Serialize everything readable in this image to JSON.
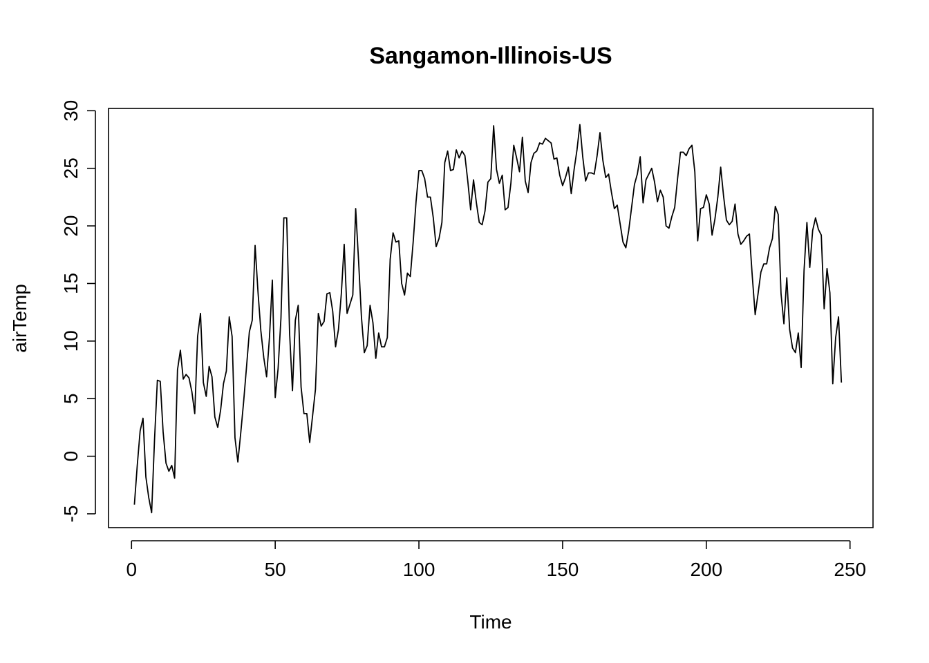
{
  "chart_data": {
    "type": "line",
    "title": "Sangamon-Illinois-US",
    "xlabel": "Time",
    "ylabel": "airTemp",
    "xlim": [
      -8,
      258
    ],
    "ylim": [
      -6.2,
      30.2
    ],
    "x_ticks": [
      0,
      50,
      100,
      150,
      200,
      250
    ],
    "y_ticks": [
      -5,
      0,
      5,
      10,
      15,
      20,
      25,
      30
    ],
    "grid": false,
    "legend": "none",
    "line_color": "#000000",
    "series": [
      {
        "x_start": 1,
        "x_step": 1,
        "values": [
          -4.2,
          -0.8,
          2.2,
          3.3,
          -1.8,
          -3.6,
          -4.9,
          1.4,
          6.6,
          6.5,
          2.1,
          -0.6,
          -1.3,
          -0.8,
          -1.9,
          7.5,
          9.2,
          6.7,
          7.1,
          6.8,
          5.6,
          3.7,
          10.4,
          12.4,
          6.4,
          5.2,
          7.8,
          6.9,
          3.4,
          2.5,
          4.0,
          6.3,
          7.4,
          12.1,
          10.4,
          1.6,
          -0.5,
          2.0,
          4.7,
          7.7,
          10.8,
          11.8,
          18.3,
          14.3,
          10.9,
          8.6,
          6.9,
          10.3,
          15.3,
          5.1,
          7.6,
          12.0,
          20.7,
          20.7,
          10.7,
          5.7,
          11.8,
          13.1,
          6.0,
          3.7,
          3.7,
          1.2,
          3.5,
          5.8,
          12.4,
          11.3,
          11.7,
          14.1,
          14.2,
          12.6,
          9.5,
          11.0,
          14.1,
          18.4,
          12.4,
          13.2,
          14.0,
          21.5,
          17.0,
          12.1,
          9.0,
          9.6,
          13.1,
          11.6,
          8.5,
          10.7,
          9.5,
          9.5,
          10.3,
          17.1,
          19.4,
          18.6,
          18.7,
          15.0,
          14.0,
          15.9,
          15.6,
          18.6,
          22.1,
          24.8,
          24.8,
          24.1,
          22.5,
          22.5,
          20.7,
          18.2,
          18.9,
          20.3,
          25.5,
          26.5,
          24.8,
          24.9,
          26.6,
          25.9,
          26.5,
          26.1,
          23.9,
          21.4,
          24.0,
          22.0,
          20.3,
          20.1,
          21.3,
          23.8,
          24.1,
          28.7,
          24.9,
          23.7,
          24.4,
          21.4,
          21.6,
          23.7,
          27.0,
          25.9,
          24.7,
          27.7,
          23.9,
          22.9,
          25.5,
          26.3,
          26.5,
          27.2,
          27.1,
          27.6,
          27.4,
          27.2,
          25.8,
          25.9,
          24.4,
          23.5,
          24.2,
          25.1,
          22.8,
          24.9,
          26.6,
          28.8,
          26.0,
          23.9,
          24.6,
          24.6,
          24.5,
          26.1,
          28.1,
          25.7,
          24.2,
          24.5,
          22.9,
          21.5,
          21.8,
          20.2,
          18.6,
          18.1,
          19.6,
          21.6,
          23.6,
          24.5,
          26.0,
          22.0,
          24.0,
          24.5,
          25.0,
          23.8,
          22.1,
          23.1,
          22.5,
          20.0,
          19.8,
          20.8,
          21.6,
          24.1,
          26.4,
          26.4,
          26.1,
          26.7,
          27.0,
          24.7,
          18.7,
          21.5,
          21.6,
          22.7,
          21.9,
          19.2,
          20.6,
          22.5,
          25.1,
          22.6,
          20.5,
          20.1,
          20.4,
          21.9,
          19.3,
          18.4,
          18.7,
          19.1,
          19.3,
          15.6,
          12.3,
          14.1,
          16.0,
          16.7,
          16.7,
          18.1,
          18.9,
          21.7,
          21.0,
          14.1,
          11.5,
          15.5,
          11.0,
          9.4,
          9.0,
          10.7,
          7.7,
          16.1,
          20.3,
          16.4,
          19.6,
          20.7,
          19.7,
          19.2,
          12.8,
          16.3,
          14.2,
          6.3,
          10.3,
          12.1,
          6.4
        ]
      }
    ]
  }
}
